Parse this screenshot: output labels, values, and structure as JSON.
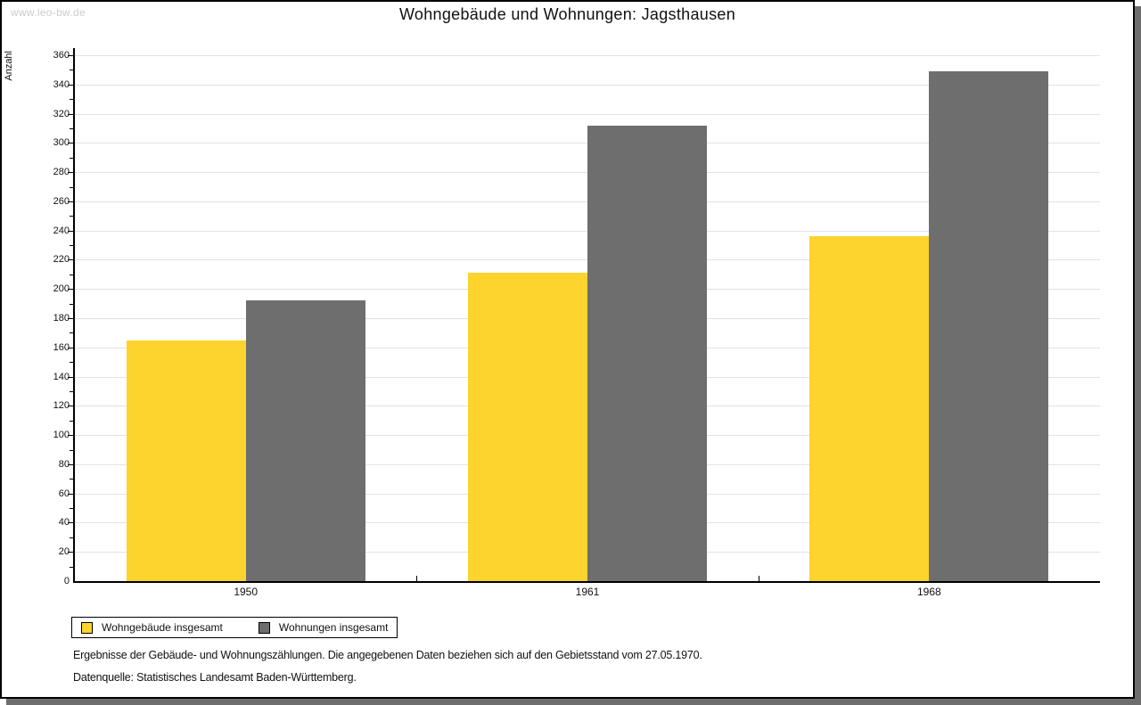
{
  "watermark": "www.leo-bw.de",
  "header": {
    "title": "Wohngebäude und Wohnungen: Jagsthausen"
  },
  "chart_data": {
    "type": "bar",
    "title": "Wohngebäude und Wohnungen: Jagsthausen",
    "xlabel": "",
    "ylabel": "Anzahl",
    "categories": [
      "1950",
      "1961",
      "1968"
    ],
    "series": [
      {
        "name": "Wohngebäude insgesamt",
        "color": "#FDD32E",
        "values": [
          165,
          211,
          236
        ]
      },
      {
        "name": "Wohnungen insgesamt",
        "color": "#6E6E6E",
        "values": [
          192,
          312,
          349
        ]
      }
    ],
    "ylim": [
      0,
      360
    ],
    "ytick_step": 20,
    "yticks": [
      0,
      20,
      40,
      60,
      80,
      100,
      120,
      140,
      160,
      180,
      200,
      220,
      240,
      260,
      280,
      300,
      320,
      340,
      360
    ],
    "minor_tick_step": 10,
    "grid": true,
    "gridline_color": "#e2e2e2",
    "legend_position": "bottom-left"
  },
  "footer": {
    "line1": "Ergebnisse der Gebäude- und Wohnungszählungen. Die angegebenen Daten beziehen sich auf den Gebietsstand vom 27.05.1970.",
    "line2": "Datenquelle: Statistisches Landesamt Baden-Württemberg."
  }
}
